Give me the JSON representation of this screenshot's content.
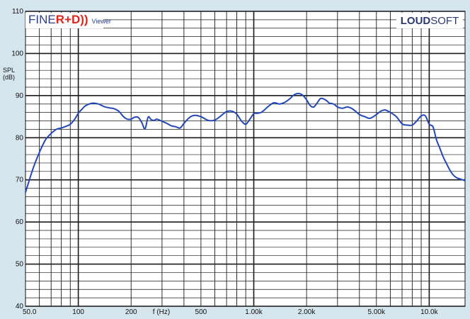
{
  "logo": {
    "fine": "FINE",
    "rd": "R+D))",
    "viewer": "Viewer"
  },
  "brand": {
    "bold": "LOUD",
    "rest": "SOFT"
  },
  "chart_data": {
    "type": "line",
    "xscale": "log",
    "xlim": [
      50,
      16000
    ],
    "ylim": [
      40,
      110
    ],
    "ylabel": "SPL\n(dB)",
    "xlabel": "f (Hz)",
    "grid": true,
    "yticks": [
      40,
      50,
      60,
      70,
      80,
      90,
      100,
      110
    ],
    "xtick_labels": [
      {
        "value": 50,
        "label": "50.0"
      },
      {
        "value": 100,
        "label": "100"
      },
      {
        "value": 200,
        "label": "200"
      },
      {
        "value": 500,
        "label": "500"
      },
      {
        "value": 1000,
        "label": "1.00k"
      },
      {
        "value": 2000,
        "label": "2.00k"
      },
      {
        "value": 5000,
        "label": "5.00k"
      },
      {
        "value": 10000,
        "label": "10.0k"
      }
    ],
    "line_color": "#2448b8",
    "series": [
      {
        "x": [
          50,
          55,
          60,
          65,
          70,
          75,
          80,
          85,
          90,
          95,
          100,
          105,
          110,
          120,
          130,
          140,
          150,
          160,
          170,
          180,
          190,
          200,
          210,
          220,
          230,
          240,
          250,
          260,
          270,
          280,
          300,
          320,
          340,
          360,
          380,
          400,
          430,
          460,
          500,
          550,
          600,
          650,
          700,
          750,
          800,
          850,
          900,
          950,
          1000,
          1050,
          1100,
          1150,
          1200,
          1300,
          1400,
          1500,
          1600,
          1700,
          1800,
          1900,
          2000,
          2100,
          2200,
          2300,
          2400,
          2500,
          2600,
          2700,
          2800,
          2900,
          3000,
          3200,
          3400,
          3600,
          3800,
          4000,
          4300,
          4600,
          5000,
          5300,
          5600,
          6000,
          6500,
          7000,
          7500,
          8000,
          8500,
          9000,
          9500,
          10000,
          10500,
          11000,
          11500,
          12000,
          12500,
          13000,
          13500,
          14000,
          14500,
          15000,
          15500,
          16000
        ],
        "y": [
          67,
          72.5,
          76.5,
          79.5,
          81.0,
          82.0,
          82.3,
          82.7,
          83.2,
          84.3,
          85.8,
          86.8,
          87.6,
          88.2,
          88.0,
          87.4,
          87.1,
          86.9,
          86.3,
          85.1,
          84.4,
          84.4,
          84.9,
          84.8,
          83.6,
          82.1,
          84.9,
          84.3,
          84.1,
          84.4,
          83.9,
          83.4,
          82.8,
          82.6,
          82.3,
          83.4,
          84.8,
          85.3,
          85.0,
          84.1,
          84.2,
          85.2,
          86.2,
          86.3,
          85.6,
          84.0,
          83.2,
          84.4,
          85.7,
          85.8,
          86.0,
          86.6,
          87.3,
          88.3,
          88.0,
          88.4,
          89.2,
          90.2,
          90.5,
          90.1,
          89.0,
          87.6,
          87.3,
          88.3,
          89.3,
          89.2,
          88.8,
          88.2,
          88.1,
          87.8,
          87.3,
          87.0,
          87.3,
          87.0,
          86.3,
          85.5,
          85.0,
          84.6,
          85.5,
          86.3,
          86.6,
          86.0,
          85.0,
          83.3,
          83.0,
          83.0,
          84.0,
          85.2,
          85.2,
          83.2,
          82.6,
          79.5,
          77.5,
          75.5,
          74.0,
          72.6,
          71.5,
          70.8,
          70.4,
          70.2,
          70.0,
          69.8
        ]
      }
    ]
  }
}
